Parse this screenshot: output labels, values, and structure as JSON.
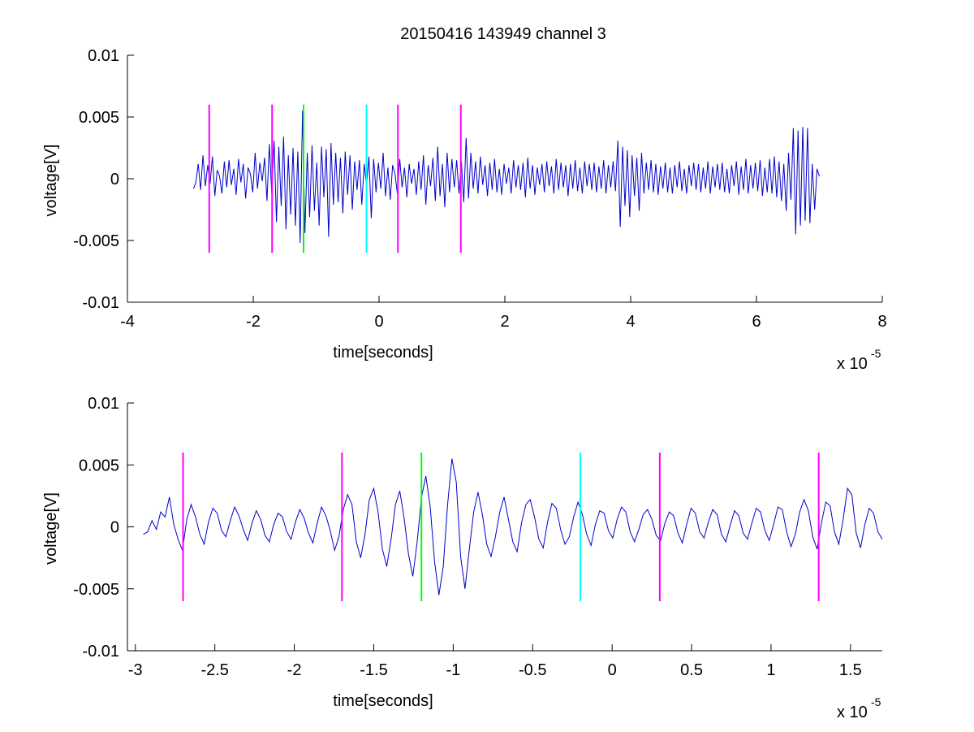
{
  "chart_data": [
    {
      "type": "line",
      "title": "20150416 143949 channel 3",
      "xlabel": "time[seconds]",
      "ylabel": "voltage[V]",
      "x_exponent_label": "x 10",
      "x_exponent_power": "-5",
      "x_unit_scale": 1e-05,
      "xlim": [
        -4,
        8
      ],
      "ylim": [
        -0.01,
        0.01
      ],
      "xticks": [
        -4,
        -2,
        0,
        2,
        4,
        6,
        8
      ],
      "xtick_labels": [
        "-4",
        "-2",
        "0",
        "2",
        "4",
        "6",
        "8"
      ],
      "yticks": [
        -0.01,
        -0.005,
        0,
        0.005,
        0.01
      ],
      "ytick_labels": [
        "-0.01",
        "-0.005",
        "0",
        "0.005",
        "0.01"
      ],
      "grid": false,
      "series": [
        {
          "color": "#0000cc",
          "x_range": [
            -2.95,
            7.0
          ],
          "y": [
            -0.0008,
            -0.0003,
            0.0012,
            -0.0009,
            0.0019,
            -0.0006,
            0.0011,
            -0.0004,
            0.0018,
            -0.0014,
            0.0007,
            0.0002,
            -0.0012,
            0.0014,
            -0.0007,
            0.0015,
            -0.0005,
            0.0008,
            -0.0013,
            0.0016,
            -0.0003,
            0.0012,
            -0.0016,
            0.0009,
            0.0004,
            -0.0011,
            0.0021,
            -0.0008,
            0.0013,
            -0.0002,
            0.0017,
            -0.0018,
            0.0028,
            -0.0012,
            0.0031,
            -0.0035,
            0.0026,
            -0.0022,
            0.0034,
            -0.0041,
            0.0019,
            -0.0029,
            0.0025,
            -0.0038,
            0.0022,
            -0.0052,
            0.0055,
            -0.0044,
            0.0021,
            -0.0031,
            0.0027,
            -0.0026,
            0.0013,
            -0.0038,
            0.0026,
            -0.0015,
            0.0024,
            -0.0047,
            0.0029,
            -0.0021,
            0.0021,
            -0.0019,
            0.0017,
            -0.0028,
            0.0022,
            -0.0013,
            0.0019,
            -0.0025,
            0.0014,
            -0.0009,
            0.0015,
            -0.0021,
            0.0012,
            -0.0006,
            0.0018,
            -0.0032,
            0.0016,
            -0.0011,
            0.0013,
            -0.0008,
            0.0021,
            -0.0014,
            0.0009,
            -0.0017,
            0.0011,
            0.0004,
            -0.0012,
            0.0016,
            -0.0007,
            0.0009,
            -0.0015,
            0.0012,
            -0.0004,
            0.0008,
            -0.0013,
            0.0014,
            -0.0009,
            0.0019,
            -0.0021,
            0.0011,
            -0.0006,
            0.0017,
            -0.0018,
            0.0026,
            -0.0014,
            0.0012,
            -0.0023,
            0.0021,
            -0.0011,
            0.0016,
            -0.0007,
            0.0015,
            -0.0012,
            0.0014,
            -0.0019,
            0.0033,
            -0.0016,
            0.0021,
            -0.0008,
            0.0014,
            -0.0012,
            0.0018,
            -0.0005,
            0.0011,
            -0.0014,
            0.0013,
            -0.0009,
            0.0016,
            -0.0011,
            0.0008,
            -0.0013,
            0.0012,
            -0.0004,
            0.0009,
            -0.0012,
            0.0015,
            -0.0007,
            0.0011,
            -0.0009,
            0.0013,
            -0.0015,
            0.0017,
            -0.0008,
            0.0011,
            -0.0013,
            0.0009,
            -0.0005,
            0.0012,
            -0.0011,
            0.0014,
            -0.0006,
            0.001,
            -0.0012,
            0.0016,
            -0.0009,
            0.0013,
            -0.0007,
            0.0011,
            -0.0014,
            0.0012,
            -0.0008,
            0.0015,
            -0.001,
            0.0009,
            -0.0012,
            0.0014,
            -0.0006,
            0.0012,
            -0.0009,
            0.0013,
            -0.0011,
            0.001,
            -0.0008,
            0.0015,
            -0.0012,
            0.0011,
            -0.0007,
            0.0014,
            -0.001,
            0.0031,
            -0.0039,
            0.0026,
            -0.0022,
            0.0023,
            -0.0031,
            0.0019,
            -0.0014,
            0.0017,
            -0.0026,
            0.0021,
            -0.0012,
            0.0013,
            -0.0009,
            0.0015,
            -0.0011,
            0.0012,
            -0.0013,
            0.001,
            -0.0008,
            0.0013,
            -0.0011,
            0.0009,
            -0.0012,
            0.0011,
            -0.0007,
            0.0014,
            -0.001,
            0.0008,
            -0.0012,
            0.0011,
            -0.0006,
            0.0013,
            -0.0009,
            0.0012,
            -0.0011,
            0.0009,
            -0.0008,
            0.0014,
            -0.0012,
            0.001,
            -0.0007,
            0.0012,
            -0.0009,
            0.0013,
            -0.0011,
            0.0008,
            -0.0012,
            0.0011,
            -0.0006,
            0.0014,
            -0.0013,
            0.001,
            -0.0009,
            0.0016,
            -0.0012,
            0.0011,
            -0.0008,
            0.0013,
            -0.001,
            0.0015,
            -0.0014,
            0.0009,
            -0.0011,
            0.0016,
            -0.0012,
            0.0018,
            -0.0015,
            0.0014,
            -0.0018,
            0.0012,
            -0.0026,
            0.0021,
            -0.0017,
            0.0041,
            -0.0045,
            0.0039,
            -0.0038,
            0.0042,
            -0.0034,
            0.0041,
            -0.0036,
            0.0012,
            -0.0025,
            0.0008,
            0.0002
          ]
        }
      ],
      "markers": [
        {
          "x": -2.7,
          "y_range": [
            -0.006,
            0.006
          ],
          "color": "#ff00ff"
        },
        {
          "x": -1.7,
          "y_range": [
            -0.006,
            0.006
          ],
          "color": "#ff00ff"
        },
        {
          "x": -1.2,
          "y_range": [
            -0.006,
            0.006
          ],
          "color": "#00ff00"
        },
        {
          "x": -0.2,
          "y_range": [
            -0.006,
            0.006
          ],
          "color": "#00ffff"
        },
        {
          "x": 0.3,
          "y_range": [
            -0.006,
            0.006
          ],
          "color": "#ff00ff"
        },
        {
          "x": 1.3,
          "y_range": [
            -0.006,
            0.006
          ],
          "color": "#ff00ff"
        }
      ]
    },
    {
      "type": "line",
      "title": "",
      "xlabel": "time[seconds]",
      "ylabel": "voltage[V]",
      "x_exponent_label": "x 10",
      "x_exponent_power": "-5",
      "x_unit_scale": 1e-05,
      "xlim": [
        -3.05,
        1.7
      ],
      "ylim": [
        -0.01,
        0.01
      ],
      "xticks": [
        -3,
        -2.5,
        -2,
        -1.5,
        -1,
        -0.5,
        0,
        0.5,
        1,
        1.5
      ],
      "xtick_labels": [
        "-3",
        "-2.5",
        "-2",
        "-1.5",
        "-1",
        "-0.5",
        "0",
        "0.5",
        "1",
        "1.5"
      ],
      "yticks": [
        -0.01,
        -0.005,
        0,
        0.005,
        0.01
      ],
      "ytick_labels": [
        "-0.01",
        "-0.005",
        "0",
        "0.005",
        "0.01"
      ],
      "grid": false,
      "series": [
        {
          "color": "#0000cc",
          "x_range": [
            -2.95,
            1.7
          ],
          "y": [
            -0.0006,
            -0.0004,
            0.0005,
            -0.0002,
            0.0012,
            0.0008,
            0.0024,
            0.0002,
            -0.001,
            -0.0019,
            0.0006,
            0.0018,
            0.0008,
            -0.0006,
            -0.0014,
            0.0004,
            0.0015,
            0.0011,
            -0.0003,
            -0.0008,
            0.0005,
            0.0016,
            0.0009,
            -0.0002,
            -0.0011,
            0.0003,
            0.0013,
            0.0006,
            -0.0007,
            -0.0012,
            0.0002,
            0.0011,
            0.0008,
            -0.0004,
            -0.001,
            0.0004,
            0.0014,
            0.0007,
            -0.0005,
            -0.0013,
            0.0003,
            0.0016,
            0.0009,
            -0.0003,
            -0.0019,
            -0.0008,
            0.0014,
            0.0026,
            0.0018,
            -0.0012,
            -0.0025,
            -0.0006,
            0.0022,
            0.0031,
            0.0012,
            -0.0018,
            -0.0032,
            -0.001,
            0.0018,
            0.0029,
            0.0007,
            -0.0022,
            -0.004,
            -0.0012,
            0.0024,
            0.0041,
            0.0016,
            -0.0028,
            -0.0055,
            -0.0032,
            0.0018,
            0.0055,
            0.0036,
            -0.0024,
            -0.005,
            -0.0018,
            0.0012,
            0.0028,
            0.001,
            -0.0014,
            -0.0024,
            -0.0008,
            0.0012,
            0.0024,
            0.0006,
            -0.0012,
            -0.002,
            0.0003,
            0.0018,
            0.0022,
            0.0008,
            -0.001,
            -0.0017,
            0.0004,
            0.0019,
            0.0015,
            -0.0002,
            -0.0014,
            -0.0008,
            0.0008,
            0.002,
            0.001,
            -0.0006,
            -0.0015,
            0.0002,
            0.0013,
            0.0011,
            -0.0003,
            -0.0009,
            0.0006,
            0.0016,
            0.0012,
            -0.0004,
            -0.0012,
            -0.0002,
            0.001,
            0.0014,
            0.0006,
            -0.0007,
            -0.0011,
            0.0003,
            0.0012,
            0.0009,
            -0.0005,
            -0.0013,
            0.0002,
            0.0015,
            0.0011,
            -0.0004,
            -0.0009,
            0.0004,
            0.0014,
            0.001,
            -0.0006,
            -0.0012,
            0.0001,
            0.0013,
            0.0009,
            -0.0005,
            -0.001,
            0.0003,
            0.0015,
            0.0012,
            -0.0003,
            -0.0011,
            0.0002,
            0.0016,
            0.0014,
            -0.0004,
            -0.0016,
            -0.0006,
            0.0012,
            0.0022,
            0.0013,
            -0.0008,
            -0.0018,
            0.0003,
            0.002,
            0.0017,
            -0.0004,
            -0.0014,
            0.0006,
            0.0031,
            0.0026,
            -0.0005,
            -0.0017,
            0.0002,
            0.0015,
            0.0011,
            -0.0004,
            -0.001
          ]
        }
      ],
      "markers": [
        {
          "x": -2.7,
          "y_range": [
            -0.006,
            0.006
          ],
          "color": "#ff00ff"
        },
        {
          "x": -1.7,
          "y_range": [
            -0.006,
            0.006
          ],
          "color": "#ff00ff"
        },
        {
          "x": -1.2,
          "y_range": [
            -0.006,
            0.006
          ],
          "color": "#00ff00"
        },
        {
          "x": -0.2,
          "y_range": [
            -0.006,
            0.006
          ],
          "color": "#00ffff"
        },
        {
          "x": 0.3,
          "y_range": [
            -0.006,
            0.006
          ],
          "color": "#ff00ff"
        },
        {
          "x": 1.3,
          "y_range": [
            -0.006,
            0.006
          ],
          "color": "#ff00ff"
        }
      ]
    }
  ]
}
